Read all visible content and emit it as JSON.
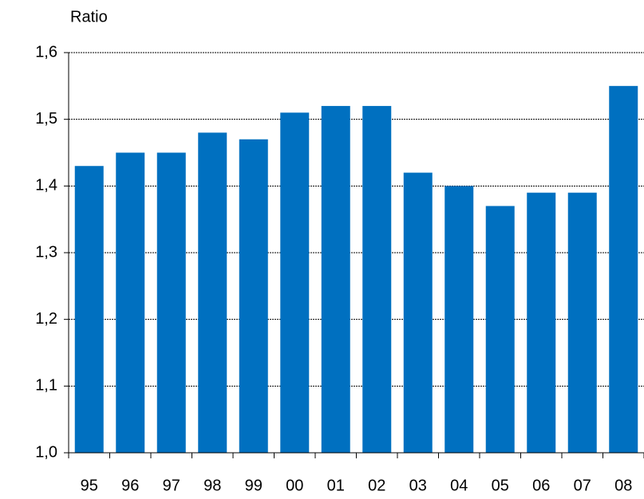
{
  "chart_data": {
    "type": "bar",
    "y_label": "Ratio",
    "categories": [
      "95",
      "96",
      "97",
      "98",
      "99",
      "00",
      "01",
      "02",
      "03",
      "04",
      "05",
      "06",
      "07",
      "08"
    ],
    "values": [
      1.43,
      1.45,
      1.45,
      1.48,
      1.47,
      1.51,
      1.52,
      1.52,
      1.42,
      1.4,
      1.37,
      1.39,
      1.39,
      1.55
    ],
    "color": "#0070c0",
    "ylim": [
      1.0,
      1.6
    ],
    "yticks": [
      {
        "value": 1.0,
        "label": "1,0"
      },
      {
        "value": 1.1,
        "label": "1,1"
      },
      {
        "value": 1.2,
        "label": "1,2"
      },
      {
        "value": 1.3,
        "label": "1,3"
      },
      {
        "value": 1.4,
        "label": "1,4"
      },
      {
        "value": 1.5,
        "label": "1,5"
      },
      {
        "value": 1.6,
        "label": "1,6"
      }
    ],
    "grid": true
  }
}
